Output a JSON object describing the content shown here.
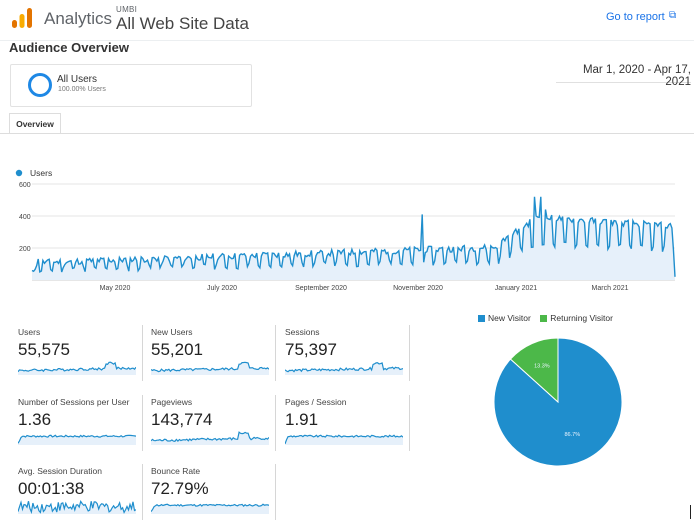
{
  "header": {
    "app_title": "Analytics",
    "account": "UMBI",
    "property": "All Web Site Data",
    "go_to_report": "Go to report",
    "link_icon": "external-link-icon"
  },
  "page_title": "Audience Overview",
  "segment": {
    "name": "All Users",
    "percent": "100.00% Users"
  },
  "date_range": "Mar 1, 2020 - Apr 17, 2021",
  "tabs": [
    {
      "label": "Overview"
    }
  ],
  "colors": {
    "accent": "#1f8ecd",
    "new_visitor": "#1f8ecd",
    "returning_visitor": "#4cb849",
    "link": "#1a73e8"
  },
  "chart_data": [
    {
      "type": "line",
      "series": [
        {
          "name": "Users"
        }
      ],
      "ylim": [
        0,
        600
      ],
      "yticks": [
        "600",
        "400",
        "200"
      ],
      "x_ticks": [
        "May 2020",
        "July 2020",
        "September 2020",
        "November 2020",
        "January 2021",
        "March 2021"
      ],
      "grid": true
    },
    {
      "type": "pie",
      "slices": [
        {
          "name": "New Visitor",
          "value": 86.7,
          "label": "86.7%"
        },
        {
          "name": "Returning Visitor",
          "value": 13.3,
          "label": "13.3%"
        }
      ],
      "legend": "top"
    }
  ],
  "metrics": [
    {
      "label": "Users",
      "value": "55,575"
    },
    {
      "label": "New Users",
      "value": "55,201"
    },
    {
      "label": "Sessions",
      "value": "75,397"
    },
    {
      "label": "Number of Sessions per User",
      "value": "1.36"
    },
    {
      "label": "Pageviews",
      "value": "143,774"
    },
    {
      "label": "Pages / Session",
      "value": "1.91"
    },
    {
      "label": "Avg. Session Duration",
      "value": "00:01:38"
    },
    {
      "label": "Bounce Rate",
      "value": "72.79%"
    }
  ]
}
